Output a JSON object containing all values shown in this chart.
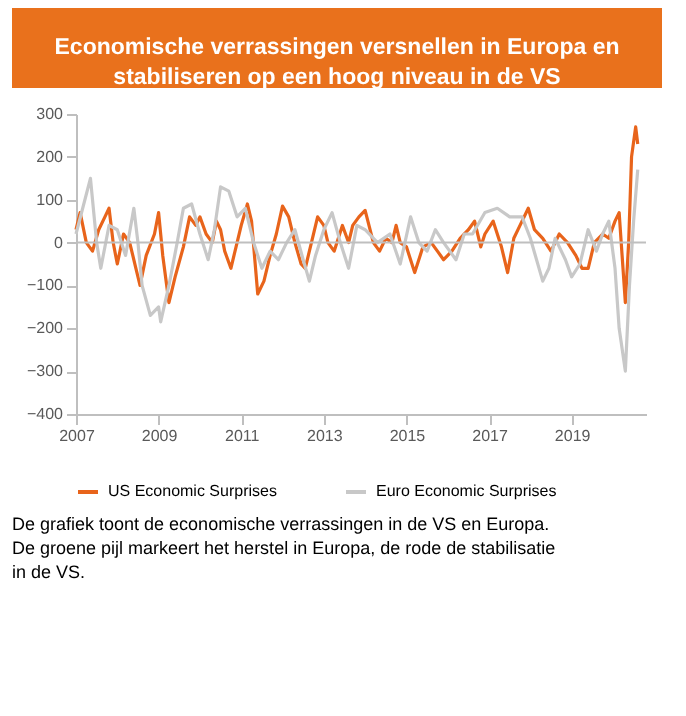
{
  "chart_data": {
    "type": "line",
    "title": "Economische verrassingen versnellen in Europa en stabiliseren op een hoog niveau in de VS",
    "xlim": [
      2007,
      2020.8
    ],
    "xticks": [
      2007,
      2009,
      2011,
      2013,
      2015,
      2017,
      2019
    ],
    "ylim": [
      -400,
      300
    ],
    "yticks": [
      -400,
      -300,
      -200,
      -100,
      0,
      100,
      200,
      300
    ],
    "grid": false,
    "legend": "bottom",
    "marker": "none",
    "line_style": "solid",
    "ref_lines": [
      {
        "axis": "y",
        "value": 0,
        "color": "#bfbfbf"
      }
    ],
    "series": [
      {
        "name": "US Economic Surprises",
        "color": "#e8641b",
        "x": [
          2007.0,
          2007.1,
          2007.25,
          2007.4,
          2007.55,
          2007.7,
          2007.8,
          2007.9,
          2008.0,
          2008.15,
          2008.3,
          2008.45,
          2008.55,
          2008.7,
          2008.9,
          2009.0,
          2009.1,
          2009.25,
          2009.4,
          2009.6,
          2009.75,
          2009.9,
          2010.0,
          2010.15,
          2010.3,
          2010.4,
          2010.5,
          2010.6,
          2010.75,
          2010.9,
          2011.0,
          2011.15,
          2011.25,
          2011.4,
          2011.55,
          2011.7,
          2011.85,
          2012.0,
          2012.15,
          2012.3,
          2012.45,
          2012.55,
          2012.7,
          2012.85,
          2013.0,
          2013.1,
          2013.25,
          2013.45,
          2013.6,
          2013.7,
          2013.85,
          2014.0,
          2014.2,
          2014.35,
          2014.5,
          2014.65,
          2014.75,
          2014.85,
          2015.0,
          2015.2,
          2015.4,
          2015.6,
          2015.75,
          2015.9,
          2016.1,
          2016.3,
          2016.5,
          2016.65,
          2016.8,
          2016.9,
          2017.1,
          2017.3,
          2017.45,
          2017.6,
          2017.75,
          2017.95,
          2018.1,
          2018.3,
          2018.5,
          2018.7,
          2018.9,
          2019.1,
          2019.25,
          2019.4,
          2019.55,
          2019.75,
          2019.9,
          2020.05,
          2020.15,
          2020.3,
          2020.38,
          2020.45,
          2020.55,
          2020.6
        ],
        "values": [
          30,
          70,
          0,
          -20,
          30,
          60,
          80,
          0,
          -50,
          20,
          0,
          -60,
          -100,
          -30,
          20,
          70,
          -30,
          -140,
          -80,
          -10,
          60,
          40,
          60,
          20,
          0,
          50,
          30,
          -20,
          -60,
          0,
          40,
          90,
          50,
          -120,
          -90,
          -30,
          20,
          85,
          60,
          0,
          -50,
          -60,
          0,
          60,
          40,
          0,
          -20,
          40,
          0,
          40,
          60,
          75,
          0,
          -20,
          10,
          0,
          40,
          0,
          -10,
          -70,
          -10,
          0,
          -20,
          -40,
          -20,
          10,
          30,
          50,
          -10,
          20,
          50,
          -10,
          -70,
          10,
          40,
          80,
          30,
          10,
          -20,
          20,
          0,
          -30,
          -60,
          -60,
          0,
          20,
          10,
          50,
          70,
          -140,
          0,
          200,
          270,
          230
        ]
      },
      {
        "name": "Euro Economic Surprises",
        "color": "#c8c8c8",
        "x": [
          2007.0,
          2007.35,
          2007.5,
          2007.6,
          2007.8,
          2008.0,
          2008.2,
          2008.4,
          2008.5,
          2008.6,
          2008.8,
          2009.0,
          2009.05,
          2009.25,
          2009.45,
          2009.6,
          2009.8,
          2010.0,
          2010.2,
          2010.35,
          2010.5,
          2010.7,
          2010.9,
          2011.1,
          2011.3,
          2011.5,
          2011.7,
          2011.9,
          2012.1,
          2012.3,
          2012.5,
          2012.65,
          2012.8,
          2013.0,
          2013.2,
          2013.4,
          2013.6,
          2013.8,
          2014.0,
          2014.3,
          2014.6,
          2014.85,
          2015.1,
          2015.3,
          2015.5,
          2015.7,
          2015.9,
          2016.2,
          2016.4,
          2016.6,
          2016.9,
          2017.2,
          2017.5,
          2017.8,
          2018.0,
          2018.3,
          2018.45,
          2018.6,
          2018.85,
          2019.0,
          2019.2,
          2019.4,
          2019.6,
          2019.75,
          2019.9,
          2020.05,
          2020.15,
          2020.3,
          2020.4,
          2020.5,
          2020.6
        ],
        "values": [
          20,
          150,
          0,
          -60,
          40,
          30,
          -30,
          80,
          0,
          -100,
          -170,
          -150,
          -185,
          -100,
          0,
          80,
          90,
          20,
          -40,
          30,
          130,
          120,
          60,
          80,
          0,
          -60,
          -20,
          -40,
          0,
          30,
          -40,
          -90,
          -30,
          30,
          70,
          0,
          -60,
          40,
          30,
          0,
          20,
          -50,
          60,
          0,
          -20,
          30,
          0,
          -40,
          20,
          20,
          70,
          80,
          60,
          60,
          10,
          -90,
          -60,
          10,
          -40,
          -80,
          -50,
          30,
          -20,
          20,
          50,
          -60,
          -200,
          -300,
          -100,
          50,
          170
        ]
      }
    ],
    "annotations": [
      "De grafiek toont de economische verrassingen in de VS en Europa.",
      "De groene pijl markeert het herstel in Europa, de rode de stabilisatie in de VS."
    ]
  }
}
